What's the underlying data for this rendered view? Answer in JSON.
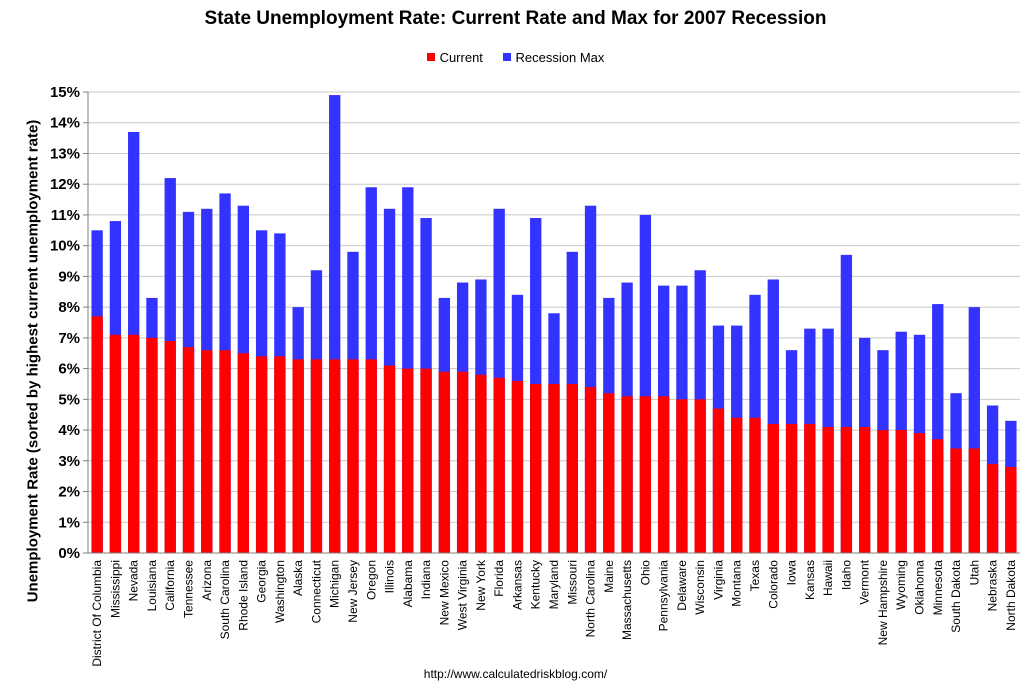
{
  "chart_data": {
    "type": "bar",
    "stacked": "overlay",
    "title": "State Unemployment Rate: Current Rate and Max for 2007 Recession",
    "ylabel": "Unemployment Rate (sorted by highest current unemployment rate)",
    "xlabel": "",
    "ylim": [
      0,
      15
    ],
    "yticks": [
      "0%",
      "1%",
      "2%",
      "3%",
      "4%",
      "5%",
      "6%",
      "7%",
      "8%",
      "9%",
      "10%",
      "11%",
      "12%",
      "13%",
      "14%",
      "15%"
    ],
    "grid": true,
    "legend_position": "top-center",
    "categories": [
      "District Of Columbia",
      "Mississippi",
      "Nevada",
      "Louisiana",
      "California",
      "Tennessee",
      "Arizona",
      "South Carolina",
      "Rhode Island",
      "Georgia",
      "Washington",
      "Alaska",
      "Connecticut",
      "Michigan",
      "New Jersey",
      "Oregon",
      "Illinois",
      "Alabama",
      "Indiana",
      "New Mexico",
      "West Virginia",
      "New York",
      "Florida",
      "Arkansas",
      "Kentucky",
      "Maryland",
      "Missouri",
      "North Carolina",
      "Maine",
      "Massachusetts",
      "Ohio",
      "Pennsylvania",
      "Delaware",
      "Wisconsin",
      "Virginia",
      "Montana",
      "Texas",
      "Colorado",
      "Iowa",
      "Kansas",
      "Hawaii",
      "Idaho",
      "Vermont",
      "New Hampshire",
      "Wyoming",
      "Oklahoma",
      "Minnesota",
      "South Dakota",
      "Utah",
      "Nebraska",
      "North Dakota"
    ],
    "series": [
      {
        "name": "Current",
        "color": "#ff0000",
        "values": [
          7.7,
          7.1,
          7.1,
          7.0,
          6.9,
          6.7,
          6.6,
          6.6,
          6.5,
          6.4,
          6.4,
          6.3,
          6.3,
          6.3,
          6.3,
          6.3,
          6.1,
          6.0,
          6.0,
          5.9,
          5.9,
          5.8,
          5.7,
          5.6,
          5.5,
          5.5,
          5.5,
          5.4,
          5.2,
          5.1,
          5.1,
          5.1,
          5.0,
          5.0,
          4.7,
          4.4,
          4.4,
          4.2,
          4.2,
          4.2,
          4.1,
          4.1,
          4.1,
          4.0,
          4.0,
          3.9,
          3.7,
          3.4,
          3.4,
          2.9,
          2.8
        ]
      },
      {
        "name": "Recession Max",
        "color": "#3333ff",
        "values": [
          10.5,
          10.8,
          13.7,
          8.3,
          12.2,
          11.1,
          11.2,
          11.7,
          11.3,
          10.5,
          10.4,
          8.0,
          9.2,
          14.9,
          9.8,
          11.9,
          11.2,
          11.9,
          10.9,
          8.3,
          8.8,
          8.9,
          11.2,
          8.4,
          10.9,
          7.8,
          9.8,
          11.3,
          8.3,
          8.8,
          11.0,
          8.7,
          8.7,
          9.2,
          7.4,
          7.4,
          8.4,
          8.9,
          6.6,
          7.3,
          7.3,
          9.7,
          7.0,
          6.6,
          7.2,
          7.1,
          8.1,
          5.2,
          8.0,
          4.8,
          4.3
        ]
      }
    ]
  },
  "legend": {
    "current_label": "Current",
    "max_label": "Recession Max"
  },
  "source": "http://www.calculatedriskblog.com/"
}
